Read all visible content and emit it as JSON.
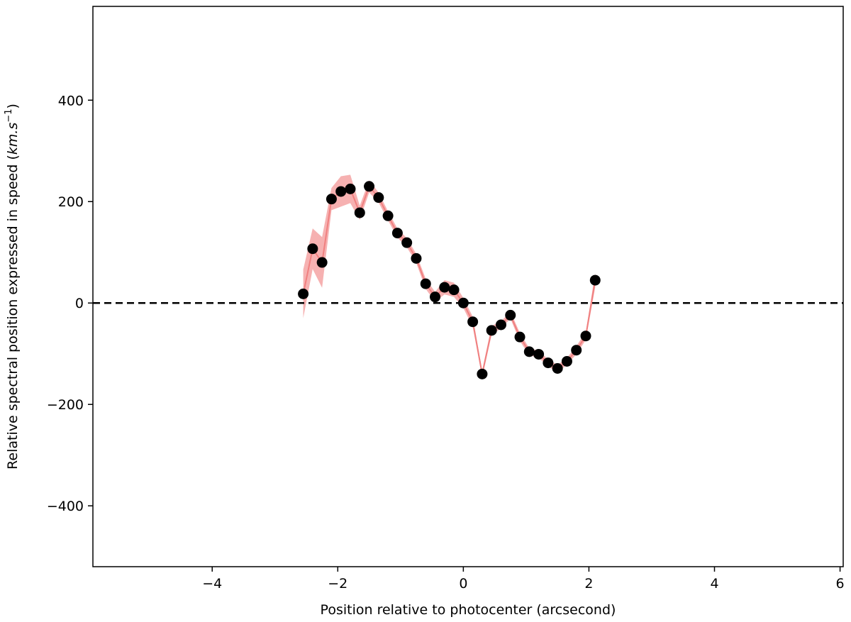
{
  "chart_data": {
    "type": "scatter",
    "title": "",
    "xlabel": "Position relative to photocenter (arcsecond)",
    "ylabel_main": "Relative spectral position expressed in speed (",
    "ylabel_unit": "km.s",
    "ylabel_exp": "−1",
    "ylabel_close": ")",
    "xlim": [
      -5.9,
      6.05
    ],
    "ylim": [
      -520,
      585
    ],
    "xticks": [
      {
        "value": -4,
        "label": "−4"
      },
      {
        "value": -2,
        "label": "−2"
      },
      {
        "value": 0,
        "label": "0"
      },
      {
        "value": 2,
        "label": "2"
      },
      {
        "value": 4,
        "label": "4"
      },
      {
        "value": 6,
        "label": "6"
      }
    ],
    "yticks": [
      {
        "value": -400,
        "label": "−400"
      },
      {
        "value": -200,
        "label": "−200"
      },
      {
        "value": 0,
        "label": "0"
      },
      {
        "value": 200,
        "label": "200"
      },
      {
        "value": 400,
        "label": "400"
      }
    ],
    "reference_line": {
      "y": 0,
      "style": "dashed",
      "color": "#000000"
    },
    "grid": false,
    "colors": {
      "points": "#000000",
      "band": "#f4a3a3",
      "band_line": "#f08080"
    },
    "series": [
      {
        "x": [
          -2.55,
          -2.4,
          -2.25,
          -2.1,
          -1.95,
          -1.8,
          -1.65,
          -1.5,
          -1.35,
          -1.2,
          -1.05,
          -0.9,
          -0.75,
          -0.6,
          -0.45,
          -0.3,
          -0.15,
          0.0,
          0.15,
          0.3,
          0.45,
          0.6,
          0.75,
          0.9,
          1.05,
          1.2,
          1.35,
          1.5,
          1.65,
          1.8,
          1.95,
          2.1
        ],
        "y": [
          18,
          107,
          80,
          205,
          220,
          225,
          178,
          230,
          208,
          172,
          138,
          119,
          88,
          38,
          12,
          31,
          26,
          0,
          -37,
          -140,
          -54,
          -43,
          -24,
          -67,
          -96,
          -101,
          -118,
          -129,
          -115,
          -93,
          -65,
          45
        ],
        "err": [
          48,
          40,
          50,
          22,
          30,
          28,
          14,
          12,
          10,
          9,
          9,
          9,
          9,
          10,
          10,
          14,
          14,
          10,
          10,
          7,
          9,
          7,
          7,
          8,
          7,
          7,
          7,
          7,
          7,
          8,
          8,
          14
        ]
      }
    ]
  }
}
